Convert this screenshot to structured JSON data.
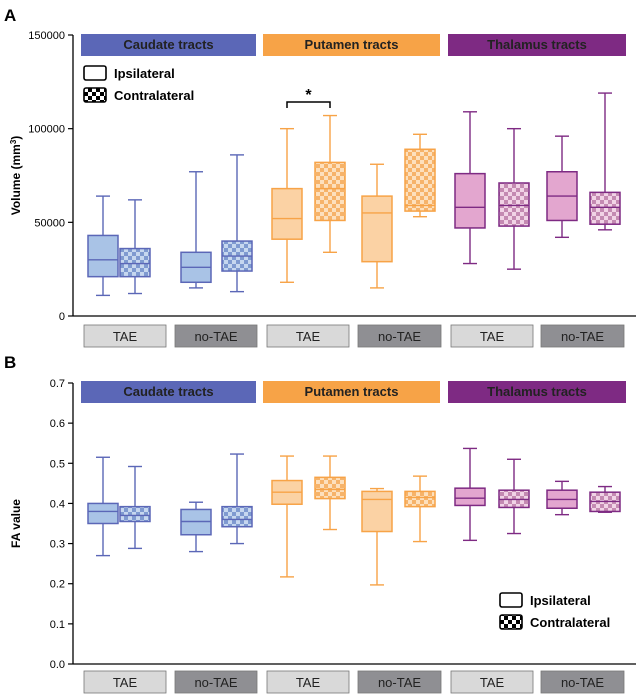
{
  "colors": {
    "caudate": "#5b67b7",
    "caudate_fill": "#a9c3e6",
    "putamen": "#f7a347",
    "putamen_fill": "#fbd2a4",
    "thalamus": "#7e2a83",
    "thalamus_fill": "#e3a6cf",
    "tae_label_bg": "#d9d9d9",
    "notae_label_bg": "#8f8f93",
    "axis": "#000000"
  },
  "chart_data": [
    {
      "type": "boxplot",
      "panel_label": "A",
      "ylabel": "Volume (mm",
      "ylabel_sup": "3",
      "ylabel_end": ")",
      "ylim": [
        0,
        150000
      ],
      "yticks": [
        0,
        50000,
        100000,
        150000
      ],
      "ytick_labels": [
        "0",
        "50000",
        "100000",
        "150000"
      ],
      "tract_headers": [
        "Caudate tracts",
        "Putamen tracts",
        "Thalamus tracts"
      ],
      "group_labels": [
        "TAE",
        "no-TAE",
        "TAE",
        "no-TAE",
        "TAE",
        "no-TAE"
      ],
      "legend": [
        "Ipsilateral",
        "Contralateral"
      ],
      "legend_position": "top-left",
      "significance": {
        "label": "*",
        "between": [
          4,
          5
        ]
      },
      "boxes": [
        {
          "tract": "caudate",
          "group": "TAE",
          "side": "ipsilateral",
          "min": 11000,
          "q1": 21000,
          "median": 30000,
          "q3": 43000,
          "max": 64000
        },
        {
          "tract": "caudate",
          "group": "TAE",
          "side": "contralateral",
          "min": 12000,
          "q1": 21000,
          "median": 28000,
          "q3": 36000,
          "max": 62000
        },
        {
          "tract": "caudate",
          "group": "no-TAE",
          "side": "ipsilateral",
          "min": 15000,
          "q1": 18000,
          "median": 26000,
          "q3": 34000,
          "max": 77000
        },
        {
          "tract": "caudate",
          "group": "no-TAE",
          "side": "contralateral",
          "min": 13000,
          "q1": 24000,
          "median": 32000,
          "q3": 40000,
          "max": 86000
        },
        {
          "tract": "putamen",
          "group": "TAE",
          "side": "ipsilateral",
          "min": 18000,
          "q1": 41000,
          "median": 52000,
          "q3": 68000,
          "max": 100000
        },
        {
          "tract": "putamen",
          "group": "TAE",
          "side": "contralateral",
          "min": 34000,
          "q1": 51000,
          "median": 68000,
          "q3": 82000,
          "max": 107000
        },
        {
          "tract": "putamen",
          "group": "no-TAE",
          "side": "ipsilateral",
          "min": 15000,
          "q1": 29000,
          "median": 55000,
          "q3": 64000,
          "max": 81000
        },
        {
          "tract": "putamen",
          "group": "no-TAE",
          "side": "contralateral",
          "min": 53000,
          "q1": 56000,
          "median": 59000,
          "q3": 89000,
          "max": 97000
        },
        {
          "tract": "thalamus",
          "group": "TAE",
          "side": "ipsilateral",
          "min": 28000,
          "q1": 47000,
          "median": 58000,
          "q3": 76000,
          "max": 109000
        },
        {
          "tract": "thalamus",
          "group": "TAE",
          "side": "contralateral",
          "min": 25000,
          "q1": 48000,
          "median": 59000,
          "q3": 71000,
          "max": 100000
        },
        {
          "tract": "thalamus",
          "group": "no-TAE",
          "side": "ipsilateral",
          "min": 42000,
          "q1": 51000,
          "median": 64000,
          "q3": 77000,
          "max": 96000
        },
        {
          "tract": "thalamus",
          "group": "no-TAE",
          "side": "contralateral",
          "min": 46000,
          "q1": 49000,
          "median": 58000,
          "q3": 66000,
          "max": 119000
        }
      ]
    },
    {
      "type": "boxplot",
      "panel_label": "B",
      "ylabel": "FA value",
      "ylim": [
        0,
        0.7
      ],
      "yticks": [
        0,
        0.1,
        0.2,
        0.3,
        0.4,
        0.5,
        0.6,
        0.7
      ],
      "ytick_labels": [
        "0.0",
        "0.1",
        "0.2",
        "0.3",
        "0.4",
        "0.5",
        "0.6",
        "0.7"
      ],
      "tract_headers": [
        "Caudate tracts",
        "Putamen tracts",
        "Thalamus tracts"
      ],
      "group_labels": [
        "TAE",
        "no-TAE",
        "TAE",
        "no-TAE",
        "TAE",
        "no-TAE"
      ],
      "legend": [
        "Ipsilateral",
        "Contralateral"
      ],
      "legend_position": "bottom-right",
      "boxes": [
        {
          "tract": "caudate",
          "group": "TAE",
          "side": "ipsilateral",
          "min": 0.27,
          "q1": 0.35,
          "median": 0.38,
          "q3": 0.4,
          "max": 0.515
        },
        {
          "tract": "caudate",
          "group": "TAE",
          "side": "contralateral",
          "min": 0.288,
          "q1": 0.355,
          "median": 0.37,
          "q3": 0.392,
          "max": 0.492
        },
        {
          "tract": "caudate",
          "group": "no-TAE",
          "side": "ipsilateral",
          "min": 0.28,
          "q1": 0.322,
          "median": 0.355,
          "q3": 0.385,
          "max": 0.403
        },
        {
          "tract": "caudate",
          "group": "no-TAE",
          "side": "contralateral",
          "min": 0.3,
          "q1": 0.342,
          "median": 0.36,
          "q3": 0.392,
          "max": 0.523
        },
        {
          "tract": "putamen",
          "group": "TAE",
          "side": "ipsilateral",
          "min": 0.217,
          "q1": 0.398,
          "median": 0.428,
          "q3": 0.457,
          "max": 0.518
        },
        {
          "tract": "putamen",
          "group": "TAE",
          "side": "contralateral",
          "min": 0.335,
          "q1": 0.412,
          "median": 0.435,
          "q3": 0.465,
          "max": 0.518
        },
        {
          "tract": "putamen",
          "group": "no-TAE",
          "side": "ipsilateral",
          "min": 0.197,
          "q1": 0.33,
          "median": 0.41,
          "q3": 0.43,
          "max": 0.437
        },
        {
          "tract": "putamen",
          "group": "no-TAE",
          "side": "contralateral",
          "min": 0.305,
          "q1": 0.392,
          "median": 0.415,
          "q3": 0.43,
          "max": 0.468
        },
        {
          "tract": "thalamus",
          "group": "TAE",
          "side": "ipsilateral",
          "min": 0.308,
          "q1": 0.395,
          "median": 0.413,
          "q3": 0.438,
          "max": 0.537
        },
        {
          "tract": "thalamus",
          "group": "TAE",
          "side": "contralateral",
          "min": 0.325,
          "q1": 0.39,
          "median": 0.41,
          "q3": 0.433,
          "max": 0.51
        },
        {
          "tract": "thalamus",
          "group": "no-TAE",
          "side": "ipsilateral",
          "min": 0.372,
          "q1": 0.388,
          "median": 0.41,
          "q3": 0.433,
          "max": 0.455
        },
        {
          "tract": "thalamus",
          "group": "no-TAE",
          "side": "contralateral",
          "min": 0.378,
          "q1": 0.38,
          "median": 0.405,
          "q3": 0.428,
          "max": 0.442
        }
      ]
    }
  ]
}
